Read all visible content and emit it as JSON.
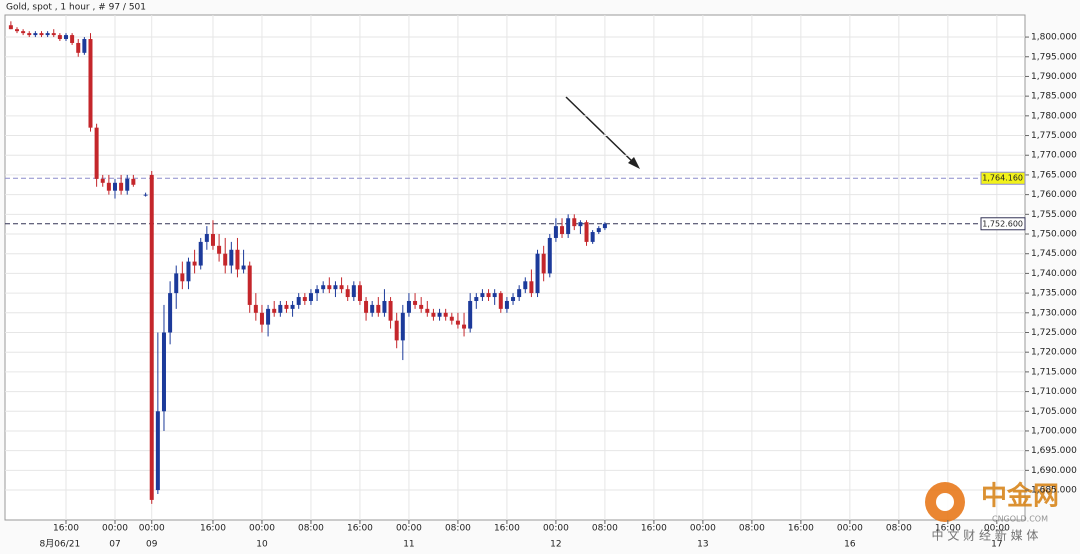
{
  "chart_data": {
    "type": "candlestick",
    "title": "Gold, spot , 1 hour , # 97 / 501",
    "x": [
      0,
      1,
      2,
      3,
      4,
      5,
      6,
      7,
      8,
      9,
      10,
      11,
      12,
      13,
      14,
      15,
      16,
      17,
      18,
      19,
      20,
      22,
      23,
      24,
      25,
      26,
      27,
      28,
      29,
      30,
      31,
      32,
      33,
      34,
      35,
      36,
      37,
      38,
      39,
      40,
      41,
      42,
      43,
      44,
      45,
      46,
      47,
      48,
      49,
      50,
      51,
      52,
      53,
      54,
      55,
      56,
      57,
      58,
      59,
      60,
      61,
      62,
      63,
      64,
      65,
      66,
      67,
      68,
      69,
      70,
      71,
      72,
      73,
      74,
      75,
      76,
      77,
      78,
      79,
      80,
      81,
      82,
      83,
      84,
      85,
      86,
      87,
      88,
      89,
      90,
      91,
      92,
      93,
      94,
      95,
      96,
      97
    ],
    "open": [
      1803,
      1802,
      1801.5,
      1801,
      1800.5,
      1801,
      1800.5,
      1801,
      1800.5,
      1799.5,
      1800.5,
      1798.5,
      1796,
      1799.5,
      1777,
      1764,
      1763,
      1761,
      1763,
      1761,
      1764,
      1760,
      1765,
      1685,
      1705,
      1725,
      1735,
      1740,
      1738,
      1743,
      1742,
      1748,
      1750,
      1747,
      1745,
      1742,
      1746,
      1741,
      1742,
      1732,
      1730,
      1727,
      1731,
      1730,
      1732,
      1731,
      1732,
      1734,
      1733,
      1735,
      1736,
      1737,
      1736,
      1737,
      1736,
      1734,
      1737,
      1733,
      1730,
      1732,
      1730,
      1733,
      1728,
      1723,
      1730,
      1733,
      1732,
      1731,
      1730,
      1729,
      1730,
      1729,
      1728,
      1727,
      1726,
      1733,
      1734,
      1735,
      1734,
      1735,
      1731,
      1733,
      1734,
      1736,
      1738,
      1735,
      1745,
      1740,
      1749,
      1752,
      1750,
      1754,
      1752,
      1753,
      1748,
      1750.5,
      1751.5
    ],
    "high": [
      1804,
      1802.5,
      1802,
      1801.5,
      1801.5,
      1801.5,
      1801.5,
      1802,
      1801,
      1801,
      1801,
      1799.5,
      1800,
      1801,
      1778,
      1765,
      1765,
      1764,
      1765,
      1765,
      1765,
      1760.5,
      1766,
      1725,
      1732,
      1738,
      1742,
      1743,
      1744,
      1746,
      1749,
      1752,
      1753.5,
      1750,
      1749,
      1748,
      1749,
      1746,
      1743,
      1735,
      1732,
      1732,
      1733,
      1733,
      1733,
      1733,
      1735,
      1735,
      1736,
      1737,
      1738,
      1739,
      1738,
      1739,
      1737,
      1738,
      1738,
      1734,
      1733,
      1734,
      1736,
      1734,
      1730,
      1732,
      1735,
      1735,
      1734,
      1733,
      1731,
      1731,
      1731,
      1730,
      1730,
      1730,
      1735,
      1735,
      1736,
      1736,
      1736,
      1735.5,
      1734,
      1735,
      1737,
      1739,
      1741,
      1746,
      1747,
      1750,
      1754,
      1754,
      1755,
      1755,
      1753.5,
      1753.5,
      1751,
      1752,
      1753
    ],
    "low": [
      1802,
      1801,
      1800.5,
      1800,
      1800,
      1800,
      1800,
      1800,
      1799,
      1799,
      1798,
      1795,
      1795.5,
      1776,
      1762,
      1762,
      1760,
      1759,
      1760,
      1760,
      1762,
      1759.5,
      1681.5,
      1684,
      1700,
      1722,
      1731,
      1736,
      1736,
      1740,
      1741,
      1746,
      1746,
      1743,
      1740,
      1740,
      1739,
      1740,
      1730,
      1728,
      1725,
      1724,
      1729,
      1729,
      1730,
      1729,
      1731,
      1732,
      1732,
      1733,
      1735,
      1735,
      1734,
      1735,
      1733,
      1733,
      1732,
      1728,
      1729,
      1729,
      1729,
      1726,
      1721,
      1718,
      1729,
      1731,
      1730,
      1729,
      1728,
      1728,
      1728,
      1727,
      1726,
      1724,
      1725,
      1731,
      1733,
      1733,
      1732,
      1730,
      1730,
      1732,
      1733,
      1735,
      1734,
      1734,
      1738,
      1739,
      1748,
      1749,
      1749,
      1751,
      1750,
      1747,
      1747.5,
      1750,
      1751
    ],
    "close": [
      1802,
      1801.5,
      1801,
      1800.5,
      1801,
      1800.5,
      1801,
      1800.5,
      1799.5,
      1800.5,
      1798.5,
      1796,
      1799.5,
      1777,
      1764,
      1763,
      1761,
      1763,
      1761,
      1764,
      1762.5,
      1760,
      1682.5,
      1705,
      1725,
      1735,
      1740,
      1738,
      1743,
      1742,
      1748,
      1750,
      1747,
      1745,
      1742,
      1746,
      1741,
      1742,
      1732,
      1730,
      1727,
      1731,
      1730,
      1732,
      1731,
      1732,
      1734,
      1733,
      1735,
      1736,
      1737,
      1736,
      1737,
      1736,
      1734,
      1737,
      1733,
      1730,
      1732,
      1730,
      1733,
      1728,
      1723,
      1730,
      1733,
      1732,
      1731,
      1730,
      1729,
      1730,
      1729,
      1728,
      1727,
      1726,
      1733,
      1734,
      1735,
      1734,
      1735,
      1731,
      1733,
      1734,
      1736,
      1738,
      1735,
      1745,
      1740,
      1749,
      1752,
      1750,
      1754,
      1752,
      1753,
      1748,
      1750.5,
      1751.5,
      1752.6
    ],
    "up_color": "#1c3a9a",
    "down_color": "#c4262b",
    "xlim": [
      -0.96,
      165.6
    ],
    "xticks": [
      {
        "value": 9,
        "label": "16:00"
      },
      {
        "value": 17,
        "label": "00:00"
      },
      {
        "value": 23,
        "label": "00:00"
      },
      {
        "value": 33,
        "label": "16:00"
      },
      {
        "value": 41,
        "label": "00:00"
      },
      {
        "value": 49,
        "label": "08:00"
      },
      {
        "value": 57,
        "label": "16:00"
      },
      {
        "value": 65,
        "label": "00:00"
      },
      {
        "value": 73,
        "label": "08:00"
      },
      {
        "value": 81,
        "label": "16:00"
      },
      {
        "value": 89,
        "label": "00:00"
      },
      {
        "value": 97,
        "label": "08:00"
      },
      {
        "value": 105,
        "label": "16:00"
      },
      {
        "value": 113,
        "label": "00:00"
      },
      {
        "value": 121,
        "label": "08:00"
      },
      {
        "value": 129,
        "label": "16:00"
      },
      {
        "value": 137,
        "label": "00:00"
      },
      {
        "value": 145,
        "label": "08:00"
      },
      {
        "value": 153,
        "label": "16:00"
      },
      {
        "value": 161,
        "label": "00:00"
      }
    ],
    "xdates": [
      {
        "value": 8,
        "label": "8月06/21"
      },
      {
        "value": 17,
        "label": "07"
      },
      {
        "value": 23,
        "label": "09"
      },
      {
        "value": 41,
        "label": "10"
      },
      {
        "value": 65,
        "label": "11"
      },
      {
        "value": 89,
        "label": "12"
      },
      {
        "value": 113,
        "label": "13"
      },
      {
        "value": 137,
        "label": "16"
      },
      {
        "value": 161,
        "label": "17"
      }
    ],
    "ylim": [
      1677.4,
      1805.6
    ],
    "yticks": [
      {
        "value": 1685,
        "label": "1,685.000"
      },
      {
        "value": 1690,
        "label": "1,690.000"
      },
      {
        "value": 1695,
        "label": "1,695.000"
      },
      {
        "value": 1700,
        "label": "1,700.000"
      },
      {
        "value": 1705,
        "label": "1,705.000"
      },
      {
        "value": 1710,
        "label": "1,710.000"
      },
      {
        "value": 1715,
        "label": "1,715.000"
      },
      {
        "value": 1720,
        "label": "1,720.000"
      },
      {
        "value": 1725,
        "label": "1,725.000"
      },
      {
        "value": 1730,
        "label": "1,730.000"
      },
      {
        "value": 1735,
        "label": "1,735.000"
      },
      {
        "value": 1740,
        "label": "1,740.000"
      },
      {
        "value": 1745,
        "label": "1,745.000"
      },
      {
        "value": 1750,
        "label": "1,750.000"
      },
      {
        "value": 1755,
        "label": "1,755.000"
      },
      {
        "value": 1760,
        "label": "1,760.000"
      },
      {
        "value": 1765,
        "label": "1,765.000"
      },
      {
        "value": 1770,
        "label": "1,770.000"
      },
      {
        "value": 1775,
        "label": "1,775.000"
      },
      {
        "value": 1780,
        "label": "1,780.000"
      },
      {
        "value": 1785,
        "label": "1,785.000"
      },
      {
        "value": 1790,
        "label": "1,790.000"
      },
      {
        "value": 1795,
        "label": "1,795.000"
      },
      {
        "value": 1800,
        "label": "1,800.000"
      }
    ],
    "grid": true,
    "reference_lines": [
      {
        "value": 1764.16,
        "label": "1,764.160",
        "color": "#8c8ccc",
        "label_bg": "#f2f21a"
      },
      {
        "value": 1752.6,
        "label": "1,752.600",
        "color": "#333355",
        "label_bg": "#ffffff"
      }
    ],
    "watermark": {
      "name": "中金网",
      "site": "CNGOLD.COM",
      "tagline": "中 文 财 经 新 媒 体"
    }
  }
}
